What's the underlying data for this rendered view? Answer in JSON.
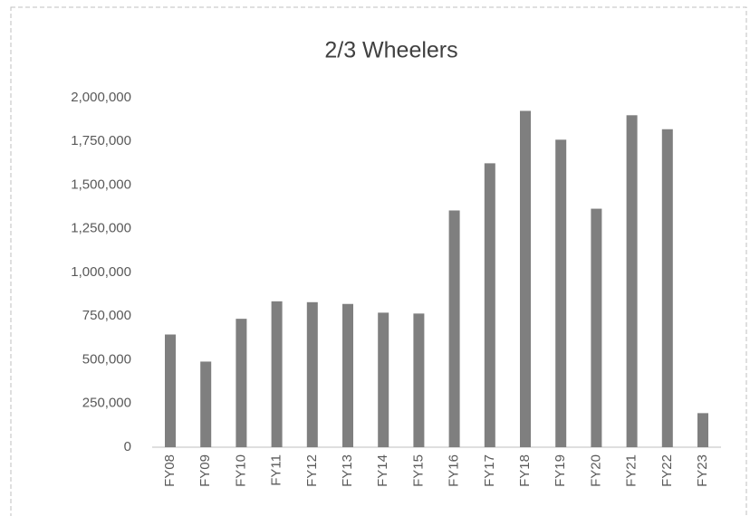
{
  "chart_data": {
    "type": "bar",
    "title": "2/3 Wheelers",
    "categories": [
      "FY08",
      "FY09",
      "FY10",
      "FY11",
      "FY12",
      "FY13",
      "FY14",
      "FY15",
      "FY16",
      "FY17",
      "FY18",
      "FY19",
      "FY20",
      "FY21",
      "FY22",
      "FY23"
    ],
    "values": [
      645000,
      490000,
      735000,
      835000,
      830000,
      820000,
      770000,
      765000,
      1355000,
      1625000,
      1925000,
      1760000,
      1365000,
      1900000,
      1820000,
      195000
    ],
    "color": "#7f7f7f",
    "ylim": [
      0,
      2000000
    ],
    "yticks": [
      0,
      {
        "value": 250000,
        "label": "250,000"
      },
      {
        "value": 500000,
        "label": "500,000"
      },
      {
        "value": 750000,
        "label": "750,000"
      },
      {
        "value": 1000000,
        "label": "1,000,000"
      },
      {
        "value": 1250000,
        "label": "1,250,000"
      },
      {
        "value": 1500000,
        "label": "1,500,000"
      },
      {
        "value": 1750000,
        "label": "1,750,000"
      },
      {
        "value": 2000000,
        "label": "2,000,000"
      }
    ]
  }
}
